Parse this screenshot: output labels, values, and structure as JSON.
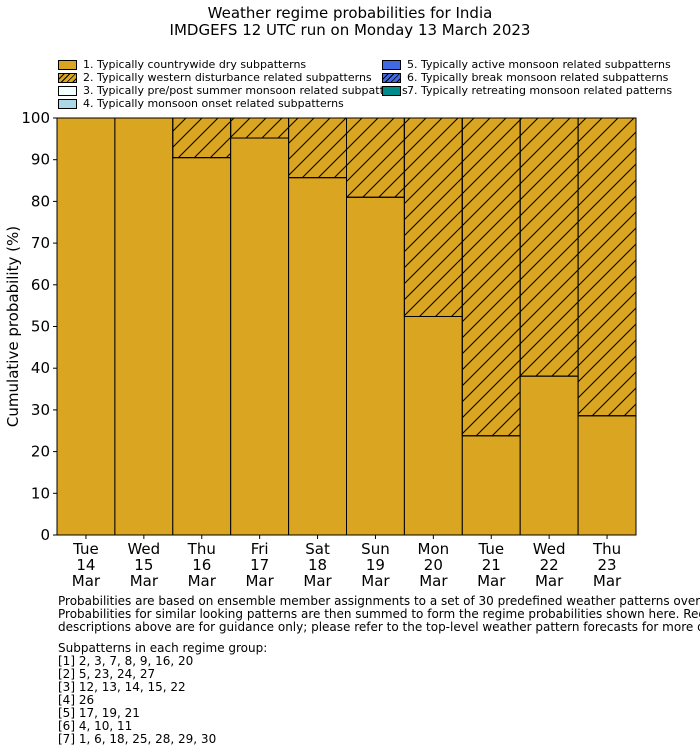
{
  "chart_data": {
    "type": "bar",
    "stacked": true,
    "title": "Weather regime probabilities for India",
    "subtitle": "IMDGEFS 12 UTC run on Monday 13 March 2023",
    "ylabel": "Cumulative probability (%)",
    "xlabel": "",
    "ylim": [
      0,
      100
    ],
    "yticks": [
      0,
      10,
      20,
      30,
      40,
      50,
      60,
      70,
      80,
      90,
      100
    ],
    "categories": [
      [
        "Tue",
        "14",
        "Mar"
      ],
      [
        "Wed",
        "15",
        "Mar"
      ],
      [
        "Thu",
        "16",
        "Mar"
      ],
      [
        "Fri",
        "17",
        "Mar"
      ],
      [
        "Sat",
        "18",
        "Mar"
      ],
      [
        "Sun",
        "19",
        "Mar"
      ],
      [
        "Mon",
        "20",
        "Mar"
      ],
      [
        "Tue",
        "21",
        "Mar"
      ],
      [
        "Wed",
        "22",
        "Mar"
      ],
      [
        "Thu",
        "23",
        "Mar"
      ]
    ],
    "series": [
      {
        "name": "1. Typically countrywide dry subpatterns",
        "color": "#DAA520",
        "hatch": false,
        "values": [
          100,
          100,
          90.5,
          95.2,
          85.7,
          81.0,
          52.4,
          23.8,
          38.1,
          28.6
        ]
      },
      {
        "name": "2. Typically western disturbance related subpatterns",
        "color": "#DAA520",
        "hatch": true,
        "values": [
          0,
          0,
          9.5,
          4.8,
          14.3,
          19.0,
          47.6,
          76.2,
          61.9,
          71.4
        ]
      },
      {
        "name": "3. Typically pre/post summer monsoon related subpatterns",
        "color": "#F0FFFF",
        "hatch": false,
        "values": [
          0,
          0,
          0,
          0,
          0,
          0,
          0,
          0,
          0,
          0
        ]
      },
      {
        "name": "4. Typically monsoon onset related subpatterns",
        "color": "#ADD8E6",
        "hatch": false,
        "values": [
          0,
          0,
          0,
          0,
          0,
          0,
          0,
          0,
          0,
          0
        ]
      },
      {
        "name": "5. Typically active monsoon related subpatterns",
        "color": "#4169E1",
        "hatch": false,
        "values": [
          0,
          0,
          0,
          0,
          0,
          0,
          0,
          0,
          0,
          0
        ]
      },
      {
        "name": "6. Typically break monsoon related subpatterns",
        "color": "#4169E1",
        "hatch": true,
        "values": [
          0,
          0,
          0,
          0,
          0,
          0,
          0,
          0,
          0,
          0
        ]
      },
      {
        "name": "7. Typically retreating monsoon related patterns",
        "color": "#008B8B",
        "hatch": false,
        "values": [
          0,
          0,
          0,
          0,
          0,
          0,
          0,
          0,
          0,
          0
        ]
      }
    ],
    "legend_position": "top"
  },
  "notes": {
    "text": "Probabilities are based on ensemble member assignments to a set of 30 predefined weather patterns over India.\nProbabilities for similar looking patterns are then summed to form the regime probabilities shown here. Regime\ndescriptions above are for guidance only; please refer to the top-level weather pattern forecasts for more detail.",
    "groups_title": "Subpatterns in each regime group:",
    "groups": [
      "[1] 2, 3, 7, 8, 9, 16, 20",
      "[2] 5, 23, 24, 27",
      "[3] 12, 13, 14, 15, 22",
      "[4] 26",
      "[5] 17, 19, 21",
      "[6] 4, 10, 11",
      "[7] 1, 6, 18, 25, 28, 29, 30"
    ]
  }
}
